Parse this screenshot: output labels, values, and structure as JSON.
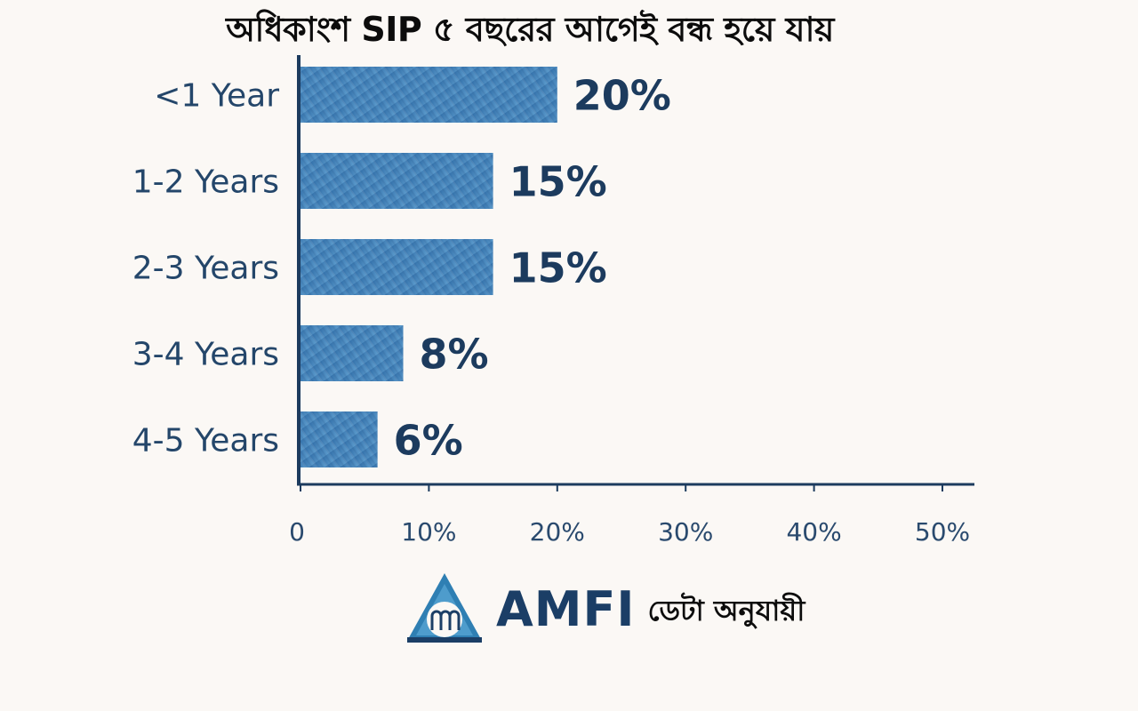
{
  "chart_data": {
    "type": "bar",
    "orientation": "horizontal",
    "title": "অধিকাংশ SIP ৫ বছরের আগেই বন্ধ হয়ে যায়",
    "categories": [
      "<1 Year",
      "1-2 Years",
      "2-3 Years",
      "3-4 Years",
      "4-5 Years"
    ],
    "values": [
      20,
      15,
      15,
      8,
      6
    ],
    "value_labels": [
      "20%",
      "15%",
      "15%",
      "8%",
      "6%"
    ],
    "xlim": [
      0,
      50
    ],
    "xticks": [
      0,
      10,
      20,
      30,
      40,
      50
    ],
    "xtick_labels": [
      "0",
      "10%",
      "20%",
      "30%",
      "40%",
      "50%"
    ],
    "bar_color": "#3f7fb6",
    "grid": false,
    "legend": "none"
  },
  "footer": {
    "brand": "AMFI",
    "note": "ডেটা অনুযায়ী",
    "logo_icon": "amfi-logo-icon",
    "brand_color": "#1b3e66"
  }
}
